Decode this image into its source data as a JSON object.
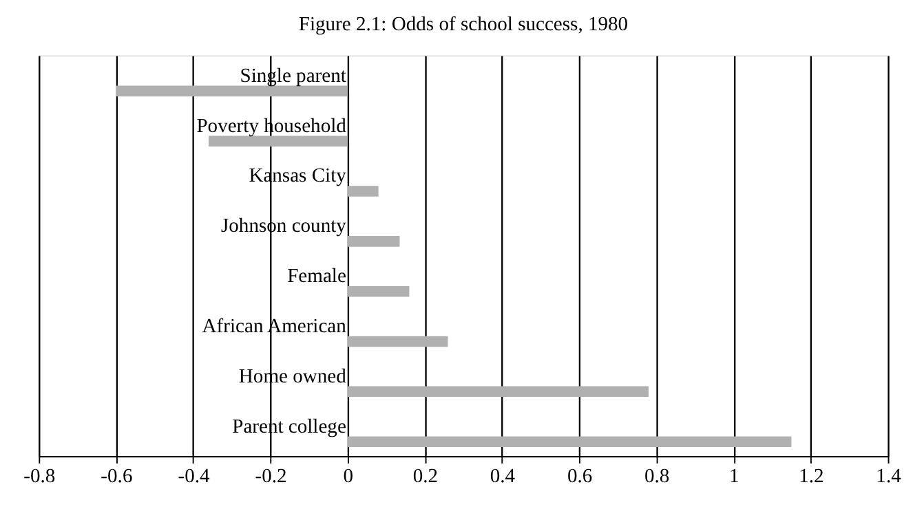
{
  "chart_data": {
    "type": "bar",
    "orientation": "horizontal",
    "title": "Figure 2.1: Odds of school success, 1980",
    "categories": [
      "Single parent",
      "Poverty household",
      "Kansas City",
      "Johnson county",
      "Female",
      "African American",
      "Home owned",
      "Parent college"
    ],
    "values": [
      -0.6,
      -0.36,
      0.08,
      0.135,
      0.16,
      0.26,
      0.78,
      1.15
    ],
    "color": "#b0b0b0",
    "xlim": [
      -0.8,
      1.4
    ],
    "xticks": [
      -0.8,
      -0.6,
      -0.4,
      -0.2,
      0,
      0.2,
      0.4,
      0.6,
      0.8,
      1,
      1.2,
      1.4
    ],
    "grid": "x"
  }
}
